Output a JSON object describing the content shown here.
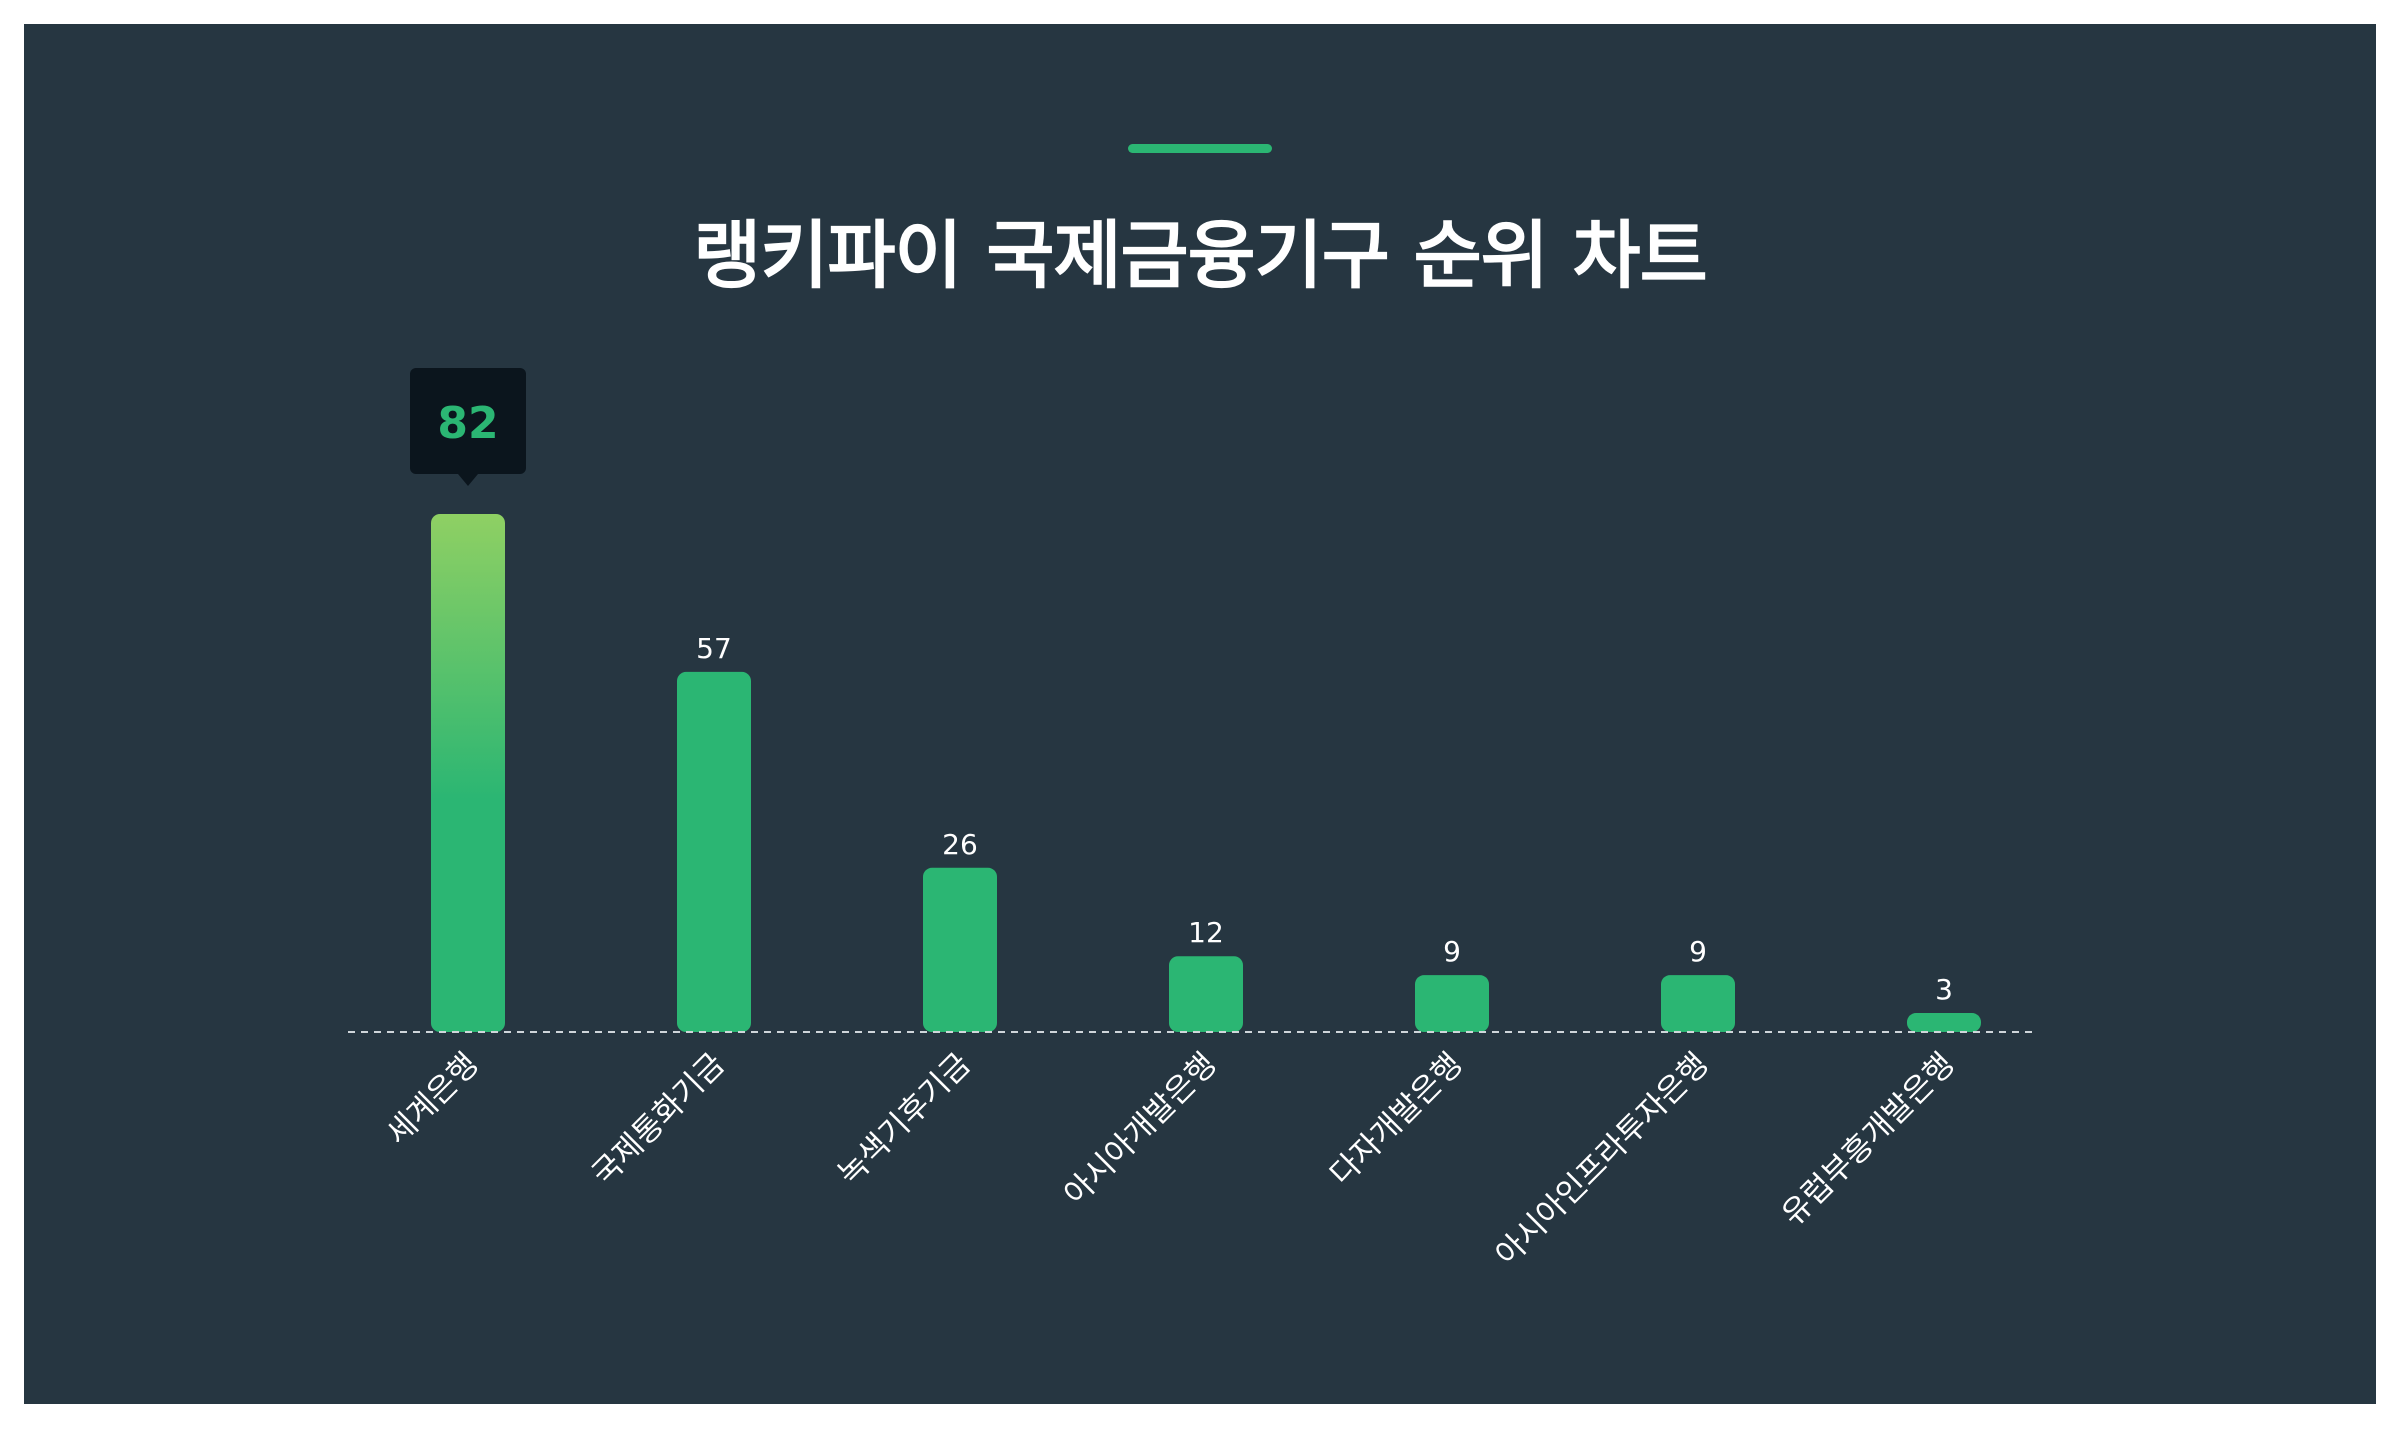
{
  "title": "랭키파이 국제금융기구 순위 차트",
  "colors": {
    "background": "#263641",
    "bar": "#2bb673",
    "bar_highlight_top": "#8fd063",
    "tooltip_bg": "#0b151d",
    "accent": "#2bb673"
  },
  "chart_data": {
    "type": "bar",
    "title": "랭키파이 국제금융기구 순위 차트",
    "xlabel": "",
    "ylabel": "",
    "categories": [
      "세계은행",
      "국제통화기금",
      "녹색기후기금",
      "아시아개발은행",
      "다자개발은행",
      "아시아인프라투자은행",
      "유럽부흥개발은행"
    ],
    "values": [
      82,
      57,
      26,
      12,
      9,
      9,
      3
    ],
    "highlighted_index": 0,
    "grid": false,
    "baseline": "dashed",
    "legend": "none"
  }
}
